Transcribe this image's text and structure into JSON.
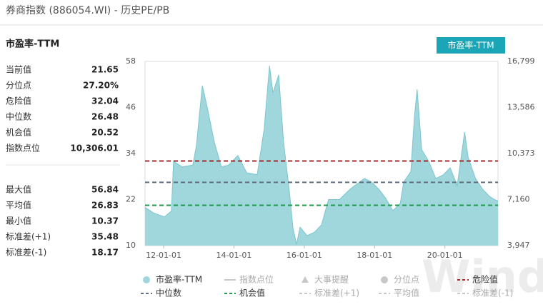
{
  "title": "券商指数 (886054.WI) - 历史PE/PB",
  "watermark": "Wind",
  "panel_title": "市盈率-TTM",
  "metric_button": "市盈率-TTM",
  "stats": [
    [
      {
        "label": "当前值",
        "value": "21.65"
      },
      {
        "label": "分位点",
        "value": "27.20%"
      },
      {
        "label": "危险值",
        "value": "32.04"
      },
      {
        "label": "中位数",
        "value": "26.48"
      },
      {
        "label": "机会值",
        "value": "20.52"
      },
      {
        "label": "指数点位",
        "value": "10,306.01"
      }
    ],
    [
      {
        "label": "最大值",
        "value": "56.84"
      },
      {
        "label": "平均值",
        "value": "26.83"
      },
      {
        "label": "最小值",
        "value": "10.37"
      },
      {
        "label": "标准差(+1)",
        "value": "35.48"
      },
      {
        "label": "标准差(-1)",
        "value": "18.17"
      }
    ]
  ],
  "chart_data": {
    "type": "area",
    "series": [
      {
        "name": "市盈率-TTM",
        "color": "#9fd7dd",
        "x": [
          2011.47,
          2011.71,
          2012.02,
          2012.22,
          2012.28,
          2012.53,
          2012.83,
          2012.93,
          2013.1,
          2013.24,
          2013.44,
          2013.64,
          2013.85,
          2014.11,
          2014.36,
          2014.66,
          2014.86,
          2015.01,
          2015.11,
          2015.27,
          2015.41,
          2015.58,
          2015.68,
          2015.78,
          2015.88,
          2016.08,
          2016.29,
          2016.49,
          2016.69,
          2017.0,
          2017.3,
          2017.71,
          2017.91,
          2018.12,
          2018.32,
          2018.52,
          2018.73,
          2018.83,
          2019.03,
          2019.13,
          2019.21,
          2019.34,
          2019.54,
          2019.74,
          2019.95,
          2020.15,
          2020.35,
          2020.56,
          2020.66,
          2020.87,
          2021.07,
          2021.27,
          2021.43,
          2021.51
        ],
        "values": [
          20,
          18.5,
          17.5,
          19,
          32,
          30.5,
          31,
          36,
          51.7,
          46,
          37,
          30.5,
          31,
          33.5,
          29,
          28.5,
          40.5,
          56.84,
          49.8,
          54.5,
          37,
          23.8,
          14.5,
          10.37,
          14.8,
          12.6,
          13.5,
          15.4,
          22,
          22,
          24.7,
          27.5,
          26.6,
          24.7,
          22.3,
          19.1,
          21,
          26.6,
          29.3,
          43.3,
          50.7,
          35,
          32,
          27.5,
          28.4,
          30.3,
          25.6,
          39.6,
          33,
          27.5,
          24.7,
          22.8,
          21.9,
          21.65
        ]
      }
    ],
    "reference_lines": [
      {
        "name": "危险值",
        "value": 32.04,
        "color": "#a52a2a"
      },
      {
        "name": "中位数",
        "value": 26.48,
        "color": "#5f6f80"
      },
      {
        "name": "机会值",
        "value": 20.52,
        "color": "#1e9a4a"
      }
    ],
    "inactive_legend": [
      {
        "name": "指数点位",
        "symbol": "line"
      },
      {
        "name": "大事提醒",
        "symbol": "triangle"
      },
      {
        "name": "分位点",
        "symbol": "circle"
      },
      {
        "name": "标准差(+1)",
        "symbol": "dash"
      },
      {
        "name": "平均值",
        "symbol": "dash"
      },
      {
        "name": "标准差(-1)",
        "symbol": "dash"
      }
    ],
    "xlim": [
      2011.47,
      2021.51
    ],
    "xticks": [
      {
        "value": 2012,
        "label": "12-01-01"
      },
      {
        "value": 2014,
        "label": "14-01-01"
      },
      {
        "value": 2016,
        "label": "16-01-01"
      },
      {
        "value": 2018,
        "label": "18-01-01"
      },
      {
        "value": 2020,
        "label": "20-01-01"
      }
    ],
    "ylim": [
      10,
      58
    ],
    "yticks": [
      10,
      22,
      34,
      46,
      58
    ],
    "y2lim": [
      3947,
      16799
    ],
    "y2ticks": [
      {
        "value": 3947,
        "label": "3,947"
      },
      {
        "value": 7160,
        "label": "7,160"
      },
      {
        "value": 10373,
        "label": "10,373"
      },
      {
        "value": 13586,
        "label": "13,586"
      },
      {
        "value": 16799,
        "label": "16,799"
      }
    ],
    "grid": false
  }
}
